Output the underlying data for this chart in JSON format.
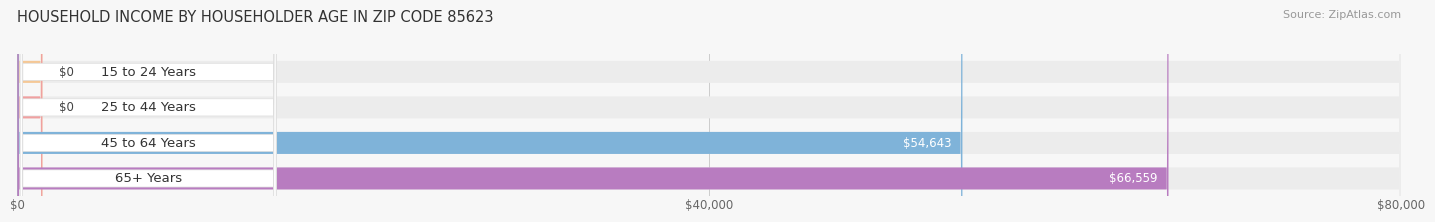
{
  "title": "HOUSEHOLD INCOME BY HOUSEHOLDER AGE IN ZIP CODE 85623",
  "source": "Source: ZipAtlas.com",
  "categories": [
    "15 to 24 Years",
    "25 to 44 Years",
    "45 to 64 Years",
    "65+ Years"
  ],
  "values": [
    0,
    0,
    54643,
    66559
  ],
  "value_labels": [
    "$0",
    "$0",
    "$54,643",
    "$66,559"
  ],
  "bar_colors": [
    "#f5c896",
    "#f0a0a0",
    "#7fb3d9",
    "#b87cc0"
  ],
  "bar_bg_color": "#ececec",
  "label_bg_color": "#ffffff",
  "background_color": "#f7f7f7",
  "xlim": [
    0,
    80000
  ],
  "xticks": [
    0,
    40000,
    80000
  ],
  "xtick_labels": [
    "$0",
    "$40,000",
    "$80,000"
  ],
  "title_fontsize": 10.5,
  "source_fontsize": 8,
  "bar_height": 0.62,
  "label_fontsize": 8.5,
  "category_fontsize": 9.5
}
